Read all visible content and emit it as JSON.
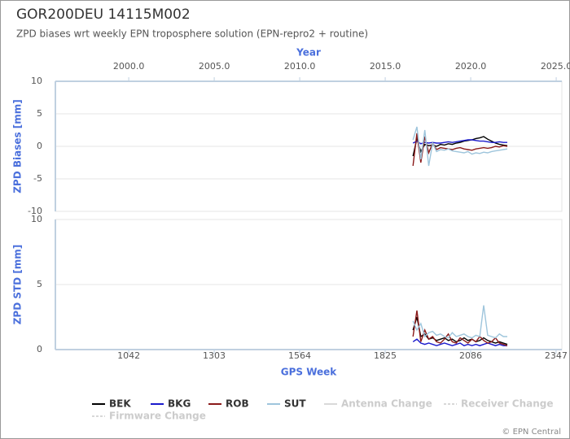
{
  "chart_data": [
    {
      "type": "line",
      "title": "GOR200DEU 14115M002",
      "subtitle": "ZPD biases wrt weekly EPN troposphere solution (EPN-repro2 + routine)",
      "x2label": "Year",
      "ylabel": "ZPD Biases [mm]",
      "xlim": [
        818,
        2364.6
      ],
      "x2lim": [
        1995.71,
        2025.33
      ],
      "x2ticks": [
        {
          "value": 2000,
          "label": "2000.0"
        },
        {
          "value": 2005,
          "label": "2005.0"
        },
        {
          "value": 2010,
          "label": "2010.0"
        },
        {
          "value": 2015,
          "label": "2015.0"
        },
        {
          "value": 2020,
          "label": "2020.0"
        },
        {
          "value": 2025,
          "label": "2025.0"
        }
      ],
      "ylim": [
        -10,
        10
      ],
      "yticks": [
        -10,
        -5,
        0,
        5,
        10
      ],
      "grid": true,
      "x": [
        1910,
        1922,
        1934,
        1946,
        1958,
        1970,
        1982,
        1994,
        2006,
        2018,
        2030,
        2042,
        2054,
        2066,
        2078,
        2090,
        2102,
        2114,
        2126,
        2138,
        2150,
        2162,
        2174,
        2186,
        2198
      ],
      "series": [
        {
          "name": "BEK",
          "color": "#000000",
          "values": [
            -1.5,
            1.2,
            -0.8,
            0.3,
            0.1,
            0.2,
            0,
            0.3,
            0.2,
            0.4,
            0.3,
            0.5,
            0.6,
            0.8,
            0.9,
            1.0,
            1.2,
            1.3,
            1.5,
            1.1,
            0.8,
            0.5,
            0.3,
            0.2,
            0.1
          ]
        },
        {
          "name": "BKG",
          "color": "#1a1acc",
          "values": [
            0.5,
            0.8,
            0.4,
            0.6,
            0.5,
            0.6,
            0.5,
            0.5,
            0.6,
            0.7,
            0.6,
            0.7,
            0.8,
            0.9,
            1.0,
            1.0,
            0.9,
            0.8,
            0.8,
            0.7,
            0.6,
            0.6,
            0.7,
            0.6,
            0.6
          ]
        },
        {
          "name": "ROB",
          "color": "#8b1a1a",
          "values": [
            -3,
            2,
            -2.5,
            1.5,
            -1,
            0.5,
            -0.5,
            -0.2,
            -0.3,
            -0.4,
            -0.5,
            -0.3,
            -0.2,
            -0.4,
            -0.5,
            -0.6,
            -0.4,
            -0.3,
            -0.2,
            -0.3,
            -0.2,
            0,
            -0.1,
            0.1,
            0
          ]
        },
        {
          "name": "SUT",
          "color": "#9ec5dc",
          "values": [
            1,
            3,
            -2,
            2.5,
            -3,
            0.5,
            -0.8,
            -0.5,
            -0.6,
            -0.4,
            -0.7,
            -0.8,
            -0.9,
            -1.0,
            -0.8,
            -1.2,
            -1.0,
            -1.1,
            -0.9,
            -1.0,
            -0.8,
            -0.7,
            -0.6,
            -0.5,
            -0.4
          ]
        }
      ],
      "event_legend": [
        {
          "name": "Antenna Change",
          "color": "#cccccc"
        },
        {
          "name": "Receiver Change",
          "color": "#cccccc"
        },
        {
          "name": "Firmware Change",
          "color": "#cccccc"
        }
      ],
      "credit": "© EPN Central"
    },
    {
      "type": "line",
      "xlabel": "GPS Week",
      "ylabel": "ZPD STD [mm]",
      "xlim": [
        818,
        2364.6
      ],
      "xticks": [
        1042,
        1303,
        1564,
        1825,
        2086,
        2347
      ],
      "ylim": [
        0,
        10
      ],
      "yticks": [
        0,
        5,
        10
      ],
      "grid": true,
      "x": [
        1910,
        1922,
        1934,
        1946,
        1958,
        1970,
        1982,
        1994,
        2006,
        2018,
        2030,
        2042,
        2054,
        2066,
        2078,
        2090,
        2102,
        2114,
        2126,
        2138,
        2150,
        2162,
        2174,
        2186,
        2198
      ],
      "series": [
        {
          "name": "BEK",
          "color": "#000000",
          "values": [
            1.5,
            2.5,
            1,
            1.2,
            0.8,
            0.9,
            0.7,
            0.8,
            0.9,
            0.7,
            0.8,
            0.6,
            0.7,
            0.9,
            0.7,
            0.8,
            0.6,
            0.7,
            0.9,
            0.7,
            0.6,
            0.5,
            0.6,
            0.5,
            0.4
          ]
        },
        {
          "name": "BKG",
          "color": "#1a1acc",
          "values": [
            0.6,
            0.8,
            0.5,
            0.4,
            0.5,
            0.4,
            0.3,
            0.4,
            0.5,
            0.4,
            0.3,
            0.4,
            0.5,
            0.3,
            0.4,
            0.3,
            0.4,
            0.3,
            0.4,
            0.5,
            0.4,
            0.3,
            0.4,
            0.3,
            0.3
          ]
        },
        {
          "name": "ROB",
          "color": "#8b1a1a",
          "values": [
            1,
            3,
            0.6,
            1.5,
            0.8,
            1,
            0.6,
            0.5,
            0.8,
            1.2,
            0.6,
            0.5,
            0.9,
            0.7,
            0.5,
            0.8,
            0.6,
            1,
            0.7,
            0.5,
            0.6,
            0.9,
            0.5,
            0.4,
            0.3
          ]
        },
        {
          "name": "SUT",
          "color": "#9ec5dc",
          "values": [
            2.2,
            1.5,
            2.0,
            1.0,
            1.3,
            1.4,
            1.1,
            1.2,
            1.0,
            0.9,
            1.3,
            1.0,
            1.1,
            1.2,
            1.0,
            0.9,
            1.1,
            1.0,
            3.4,
            1.1,
            1.0,
            0.9,
            1.2,
            1.0,
            1.0
          ]
        }
      ]
    }
  ]
}
